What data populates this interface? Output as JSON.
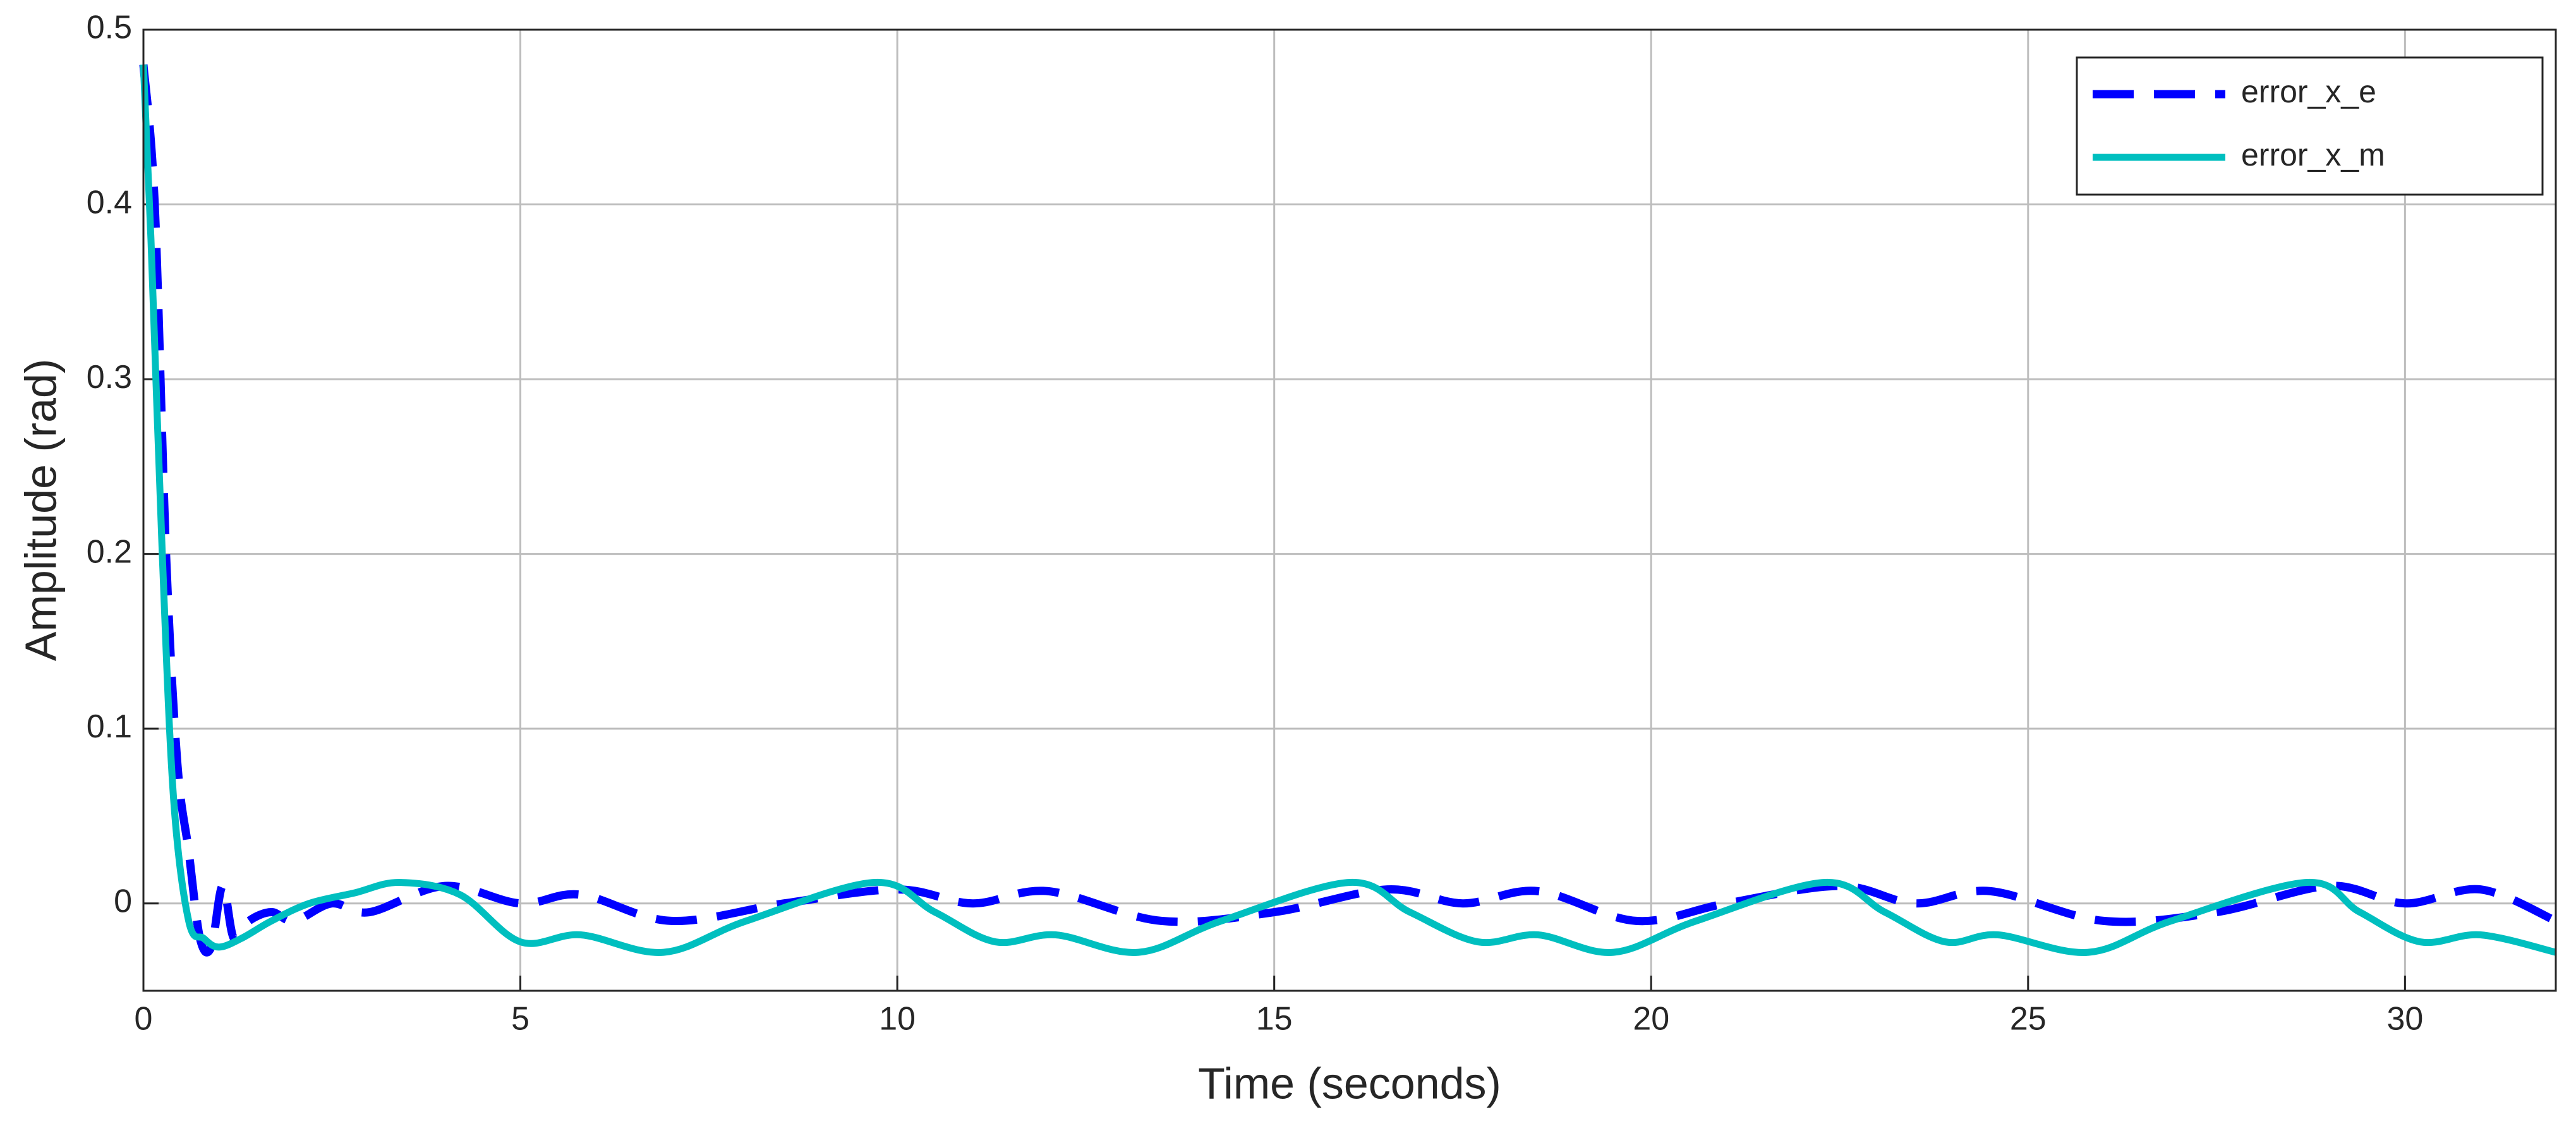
{
  "chart_data": {
    "type": "line",
    "xlabel": "Time (seconds)",
    "ylabel": "Amplitude (rad)",
    "xlim": [
      0,
      32
    ],
    "xticks": [
      0,
      5,
      10,
      15,
      20,
      25,
      30
    ],
    "ylim": [
      -0.05,
      0.5
    ],
    "yticks": [
      0,
      0.1,
      0.2,
      0.3,
      0.4,
      0.5
    ],
    "grid": true,
    "legend": "upper right",
    "series": [
      {
        "name": "error_x_e",
        "color": "#0000ff",
        "dash": true,
        "x": [
          0,
          0.15,
          0.3,
          0.45,
          0.6,
          0.75,
          0.9,
          1.05,
          1.2,
          1.4,
          1.7,
          2.0,
          2.5,
          3.0,
          4.0,
          5.0,
          5.8,
          7.0,
          8.5,
          10.0,
          11.0,
          12.0,
          13.5,
          15.0,
          16.5,
          17.5,
          18.5,
          19.8,
          21.0,
          22.5,
          23.5,
          24.5,
          26.0,
          27.5,
          29.0,
          30.0,
          31.0,
          32.0
        ],
        "values": [
          0.48,
          0.4,
          0.2,
          0.08,
          0.03,
          -0.02,
          -0.025,
          0.01,
          -0.02,
          -0.01,
          -0.005,
          -0.01,
          0.0,
          -0.005,
          0.01,
          0.0,
          0.005,
          -0.01,
          0.0,
          0.008,
          0.0,
          0.007,
          -0.01,
          -0.005,
          0.008,
          0.0,
          0.007,
          -0.01,
          0.0,
          0.01,
          0.0,
          0.007,
          -0.01,
          -0.005,
          0.01,
          0.0,
          0.008,
          -0.01
        ]
      },
      {
        "name": "error_x_m",
        "color": "#00bfbf",
        "dash": false,
        "x": [
          0,
          0.1,
          0.25,
          0.4,
          0.6,
          0.8,
          1.0,
          1.3,
          1.7,
          2.2,
          2.8,
          3.4,
          4.2,
          5.0,
          5.8,
          6.9,
          8.0,
          9.7,
          10.5,
          11.3,
          12.1,
          13.2,
          14.3,
          16.0,
          16.8,
          17.7,
          18.5,
          19.5,
          20.6,
          22.3,
          23.1,
          23.9,
          24.6,
          25.8,
          26.9,
          28.7,
          29.4,
          30.2,
          31.0,
          32.0
        ],
        "values": [
          0.48,
          0.38,
          0.2,
          0.06,
          -0.01,
          -0.02,
          -0.025,
          -0.02,
          -0.01,
          0.0,
          0.006,
          0.012,
          0.005,
          -0.022,
          -0.018,
          -0.028,
          -0.01,
          0.012,
          -0.005,
          -0.022,
          -0.018,
          -0.028,
          -0.01,
          0.012,
          -0.005,
          -0.022,
          -0.018,
          -0.028,
          -0.01,
          0.012,
          -0.005,
          -0.022,
          -0.018,
          -0.028,
          -0.01,
          0.012,
          -0.005,
          -0.022,
          -0.018,
          -0.028
        ]
      }
    ]
  }
}
